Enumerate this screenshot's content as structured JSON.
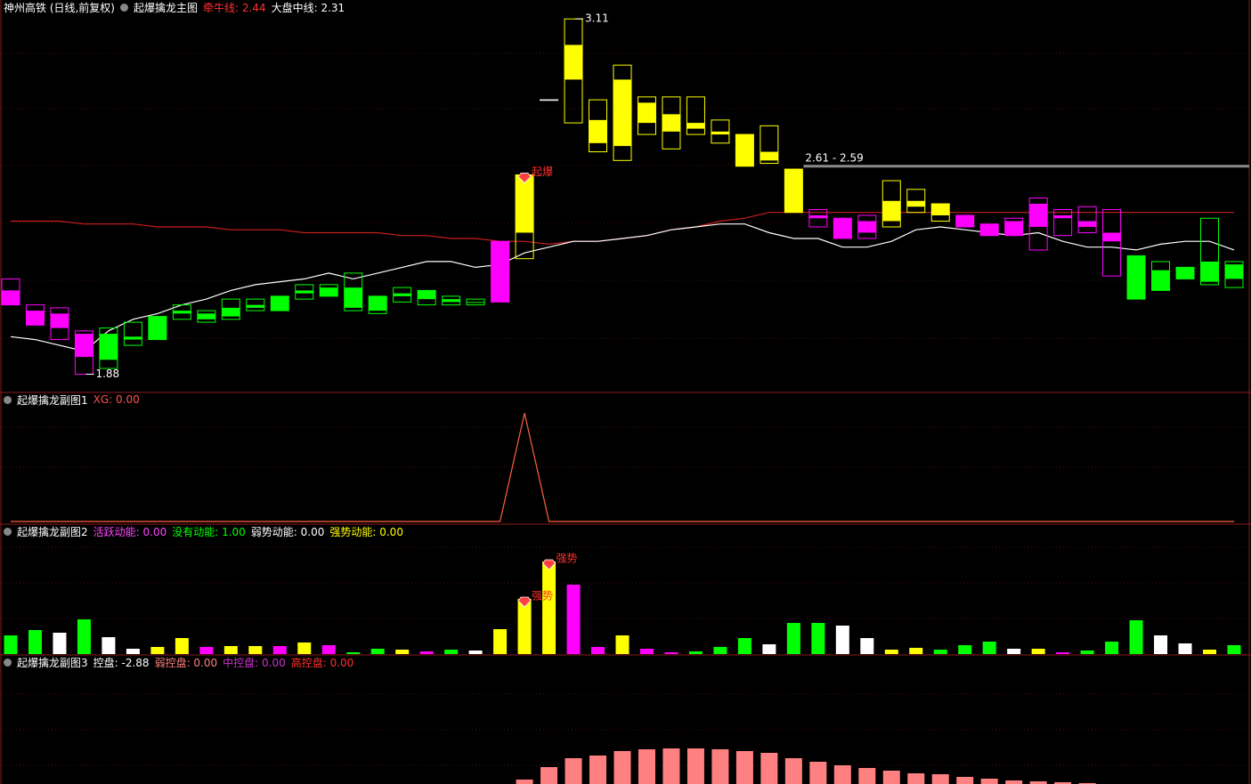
{
  "chart_data": [
    {
      "type": "candlestick",
      "subtitle": "神州高铁 (日线,前复权)",
      "title": "起爆擒龙主图",
      "ylim": [
        1.82,
        3.12
      ],
      "high": [
        2.21,
        2.12,
        2.11,
        2.03,
        2.04,
        2.06,
        2.08,
        2.12,
        2.1,
        2.14,
        2.14,
        2.15,
        2.19,
        2.19,
        2.23,
        2.15,
        2.18,
        2.17,
        2.15,
        2.14,
        2.34,
        2.57,
        2.83,
        3.11,
        2.83,
        2.95,
        2.84,
        2.84,
        2.84,
        2.76,
        2.71,
        2.74,
        2.59,
        2.45,
        2.42,
        2.43,
        2.55,
        2.52,
        2.47,
        2.43,
        2.4,
        2.42,
        2.49,
        2.45,
        2.46,
        2.45,
        2.29,
        2.27,
        2.25,
        2.42,
        2.27
      ],
      "low": [
        2.12,
        2.05,
        2.0,
        1.88,
        1.9,
        1.98,
        2.0,
        2.07,
        2.06,
        2.07,
        2.1,
        2.1,
        2.14,
        2.15,
        2.1,
        2.09,
        2.13,
        2.12,
        2.12,
        2.12,
        2.13,
        2.28,
        2.83,
        2.75,
        2.65,
        2.62,
        2.71,
        2.66,
        2.71,
        2.68,
        2.6,
        2.61,
        2.44,
        2.39,
        2.35,
        2.35,
        2.39,
        2.44,
        2.41,
        2.39,
        2.36,
        2.36,
        2.31,
        2.36,
        2.37,
        2.22,
        2.14,
        2.17,
        2.21,
        2.19,
        2.18
      ],
      "open": [
        2.17,
        2.1,
        2.09,
        2.02,
        1.93,
        2.0,
        2.0,
        2.09,
        2.07,
        2.08,
        2.11,
        2.1,
        2.16,
        2.15,
        2.11,
        2.1,
        2.15,
        2.14,
        2.13,
        2.13,
        2.34,
        2.37,
        2.83,
        2.9,
        2.68,
        2.67,
        2.75,
        2.72,
        2.73,
        2.71,
        2.6,
        2.62,
        2.44,
        2.43,
        2.42,
        2.41,
        2.41,
        2.46,
        2.43,
        2.43,
        2.4,
        2.41,
        2.47,
        2.43,
        2.41,
        2.37,
        2.14,
        2.17,
        2.21,
        2.2,
        2.21
      ],
      "close": [
        2.12,
        2.05,
        2.04,
        1.94,
        2.02,
        2.01,
        2.08,
        2.1,
        2.09,
        2.11,
        2.12,
        2.15,
        2.17,
        2.18,
        2.18,
        2.15,
        2.16,
        2.17,
        2.14,
        2.13,
        2.13,
        2.57,
        2.83,
        3.02,
        2.76,
        2.9,
        2.82,
        2.78,
        2.75,
        2.72,
        2.71,
        2.65,
        2.59,
        2.42,
        2.35,
        2.37,
        2.48,
        2.48,
        2.47,
        2.39,
        2.36,
        2.36,
        2.39,
        2.42,
        2.39,
        2.34,
        2.29,
        2.24,
        2.25,
        2.27,
        2.26
      ],
      "colors": [
        "#ff00ff",
        "#ff00ff",
        "#ff00ff",
        "#ff00ff",
        "#00ff00",
        "#00ff00",
        "#00ff00",
        "#00ff00",
        "#00ff00",
        "#00ff00",
        "#00ff00",
        "#00ff00",
        "#00ff00",
        "#00ff00",
        "#00ff00",
        "#00ff00",
        "#00ff00",
        "#00ff00",
        "#00ff00",
        "#00ff00",
        "#ff00ff",
        "#ffff00",
        "#ffffff",
        "#ffff00",
        "#ffff00",
        "#ffff00",
        "#ffff00",
        "#ffff00",
        "#ffff00",
        "#ffff00",
        "#ffff00",
        "#ffff00",
        "#ffff00",
        "#ff00ff",
        "#ff00ff",
        "#ff00ff",
        "#ffff00",
        "#ffff00",
        "#ffff00",
        "#ff00ff",
        "#ff00ff",
        "#ff00ff",
        "#ff00ff",
        "#ff00ff",
        "#ff00ff",
        "#ff00ff",
        "#00ff00",
        "#00ff00",
        "#00ff00",
        "#00ff00",
        "#00ff00"
      ],
      "series": [
        {
          "label": "牵牛线: 2.44",
          "color": "#ff3030",
          "line_color": "#c81e1e",
          "values": [
            2.41,
            2.41,
            2.41,
            2.4,
            2.4,
            2.4,
            2.39,
            2.39,
            2.39,
            2.38,
            2.38,
            2.38,
            2.37,
            2.37,
            2.37,
            2.37,
            2.36,
            2.36,
            2.35,
            2.35,
            2.34,
            2.34,
            2.33,
            2.34,
            2.34,
            2.35,
            2.36,
            2.38,
            2.39,
            2.41,
            2.42,
            2.44,
            2.44,
            2.44,
            2.44,
            2.44,
            2.44,
            2.44,
            2.44,
            2.44,
            2.44,
            2.44,
            2.44,
            2.44,
            2.44,
            2.44,
            2.44,
            2.44,
            2.44,
            2.44,
            2.44
          ]
        },
        {
          "label": "大盘中线: 2.31",
          "color": "#ffffff",
          "line_color": "#ffffff",
          "values": [
            2.01,
            2.0,
            1.98,
            1.96,
            2.03,
            2.07,
            2.09,
            2.12,
            2.14,
            2.17,
            2.19,
            2.2,
            2.21,
            2.23,
            2.21,
            2.23,
            2.25,
            2.27,
            2.27,
            2.25,
            2.26,
            2.3,
            2.32,
            2.34,
            2.34,
            2.35,
            2.36,
            2.38,
            2.39,
            2.4,
            2.4,
            2.37,
            2.35,
            2.35,
            2.32,
            2.32,
            2.34,
            2.38,
            2.39,
            2.38,
            2.37,
            2.36,
            2.37,
            2.34,
            2.32,
            2.32,
            2.31,
            2.33,
            2.34,
            2.34,
            2.31
          ]
        }
      ],
      "annotations": [
        {
          "text": "3.11",
          "index": 23,
          "value": 3.11,
          "color": "#ffffff",
          "marker": "arrow"
        },
        {
          "text": "1.88",
          "index": 3,
          "value": 1.88,
          "color": "#ffffff",
          "marker": "arrow"
        },
        {
          "text": "起爆",
          "index": 21,
          "value": 2.57,
          "color": "#ff3030",
          "marker": "diamond"
        }
      ],
      "levels": [
        {
          "value": 2.6,
          "label": "2.61 - 2.59",
          "from": 32
        }
      ]
    },
    {
      "type": "line",
      "title": "起爆擒龙副图1",
      "ylim": [
        0,
        1.2
      ],
      "series": [
        {
          "label": "XG: 0.00",
          "color": "#ff5050",
          "line_color": "#ff6040",
          "values": [
            0,
            0,
            0,
            0,
            0,
            0,
            0,
            0,
            0,
            0,
            0,
            0,
            0,
            0,
            0,
            0,
            0,
            0,
            0,
            0,
            0,
            1,
            0,
            0,
            0,
            0,
            0,
            0,
            0,
            0,
            0,
            0,
            0,
            0,
            0,
            0,
            0,
            0,
            0,
            0,
            0,
            0,
            0,
            0,
            0,
            0,
            0,
            0,
            0,
            0,
            0
          ]
        }
      ]
    },
    {
      "type": "bar",
      "title": "起爆擒龙副图2",
      "ylim": [
        0,
        145
      ],
      "legend": [
        {
          "label": "活跃动能: 0.00",
          "color": "#ff44ff"
        },
        {
          "label": "没有动能: 1.00",
          "color": "#00ff00"
        },
        {
          "label": "弱势动能: 0.00",
          "color": "#ffffff"
        },
        {
          "label": "强势动能: 0.00",
          "color": "#ffff00"
        }
      ],
      "values": [
        21,
        27,
        24,
        39,
        19,
        6,
        8,
        18,
        8,
        9,
        9,
        9,
        13,
        10,
        2,
        6,
        5,
        3,
        5,
        4,
        28,
        62,
        104,
        78,
        8,
        21,
        6,
        2,
        3,
        8,
        18,
        11,
        35,
        35,
        32,
        18,
        5,
        7,
        5,
        10,
        14,
        6,
        6,
        2,
        4,
        14,
        38,
        21,
        12,
        5,
        10
      ],
      "colors": [
        "#00ff00",
        "#00ff00",
        "#ffffff",
        "#00ff00",
        "#ffffff",
        "#ffffff",
        "#ffff00",
        "#ffff00",
        "#ff00ff",
        "#ffff00",
        "#ffff00",
        "#ff00ff",
        "#ffff00",
        "#ff00ff",
        "#00ff00",
        "#00ff00",
        "#ffff00",
        "#ff00ff",
        "#00ff00",
        "#ffffff",
        "#ffff00",
        "#ffff00",
        "#ffff00",
        "#ff00ff",
        "#ff00ff",
        "#ffff00",
        "#ff00ff",
        "#ff00ff",
        "#00ff00",
        "#00ff00",
        "#00ff00",
        "#ffffff",
        "#00ff00",
        "#00ff00",
        "#ffffff",
        "#ffffff",
        "#ffff00",
        "#ffff00",
        "#00ff00",
        "#00ff00",
        "#00ff00",
        "#ffffff",
        "#ffff00",
        "#ff00ff",
        "#00ff00",
        "#00ff00",
        "#00ff00",
        "#ffffff",
        "#ffffff",
        "#ffff00",
        "#00ff00"
      ],
      "annotations": [
        {
          "text": "强势",
          "index": 21,
          "value": 62,
          "color": "#ff3030",
          "marker": "diamond"
        },
        {
          "text": "强势",
          "index": 22,
          "value": 104,
          "color": "#ff3030",
          "marker": "diamond"
        }
      ]
    },
    {
      "type": "bar",
      "title": "起爆擒龙副图3",
      "ylim": [
        0,
        45
      ],
      "color": "#ff8080",
      "legend": [
        {
          "label": "控盘: -2.88",
          "color": "#ffffff"
        },
        {
          "label": "弱控盘: 0.00",
          "color": "#ff8080"
        },
        {
          "label": "中控盘: 0.00",
          "color": "#cc33cc"
        },
        {
          "label": "高控盘: 0.00",
          "color": "#ff3030"
        }
      ],
      "values": [
        null,
        null,
        null,
        null,
        null,
        null,
        null,
        null,
        null,
        null,
        null,
        null,
        null,
        null,
        null,
        null,
        null,
        null,
        null,
        null,
        null,
        5,
        19,
        29,
        32,
        37,
        39,
        40,
        40,
        39,
        37,
        35,
        29,
        25,
        21,
        18,
        15,
        12,
        11,
        8,
        6,
        4,
        3,
        2,
        1,
        null,
        null,
        null,
        null,
        null,
        null
      ]
    }
  ]
}
